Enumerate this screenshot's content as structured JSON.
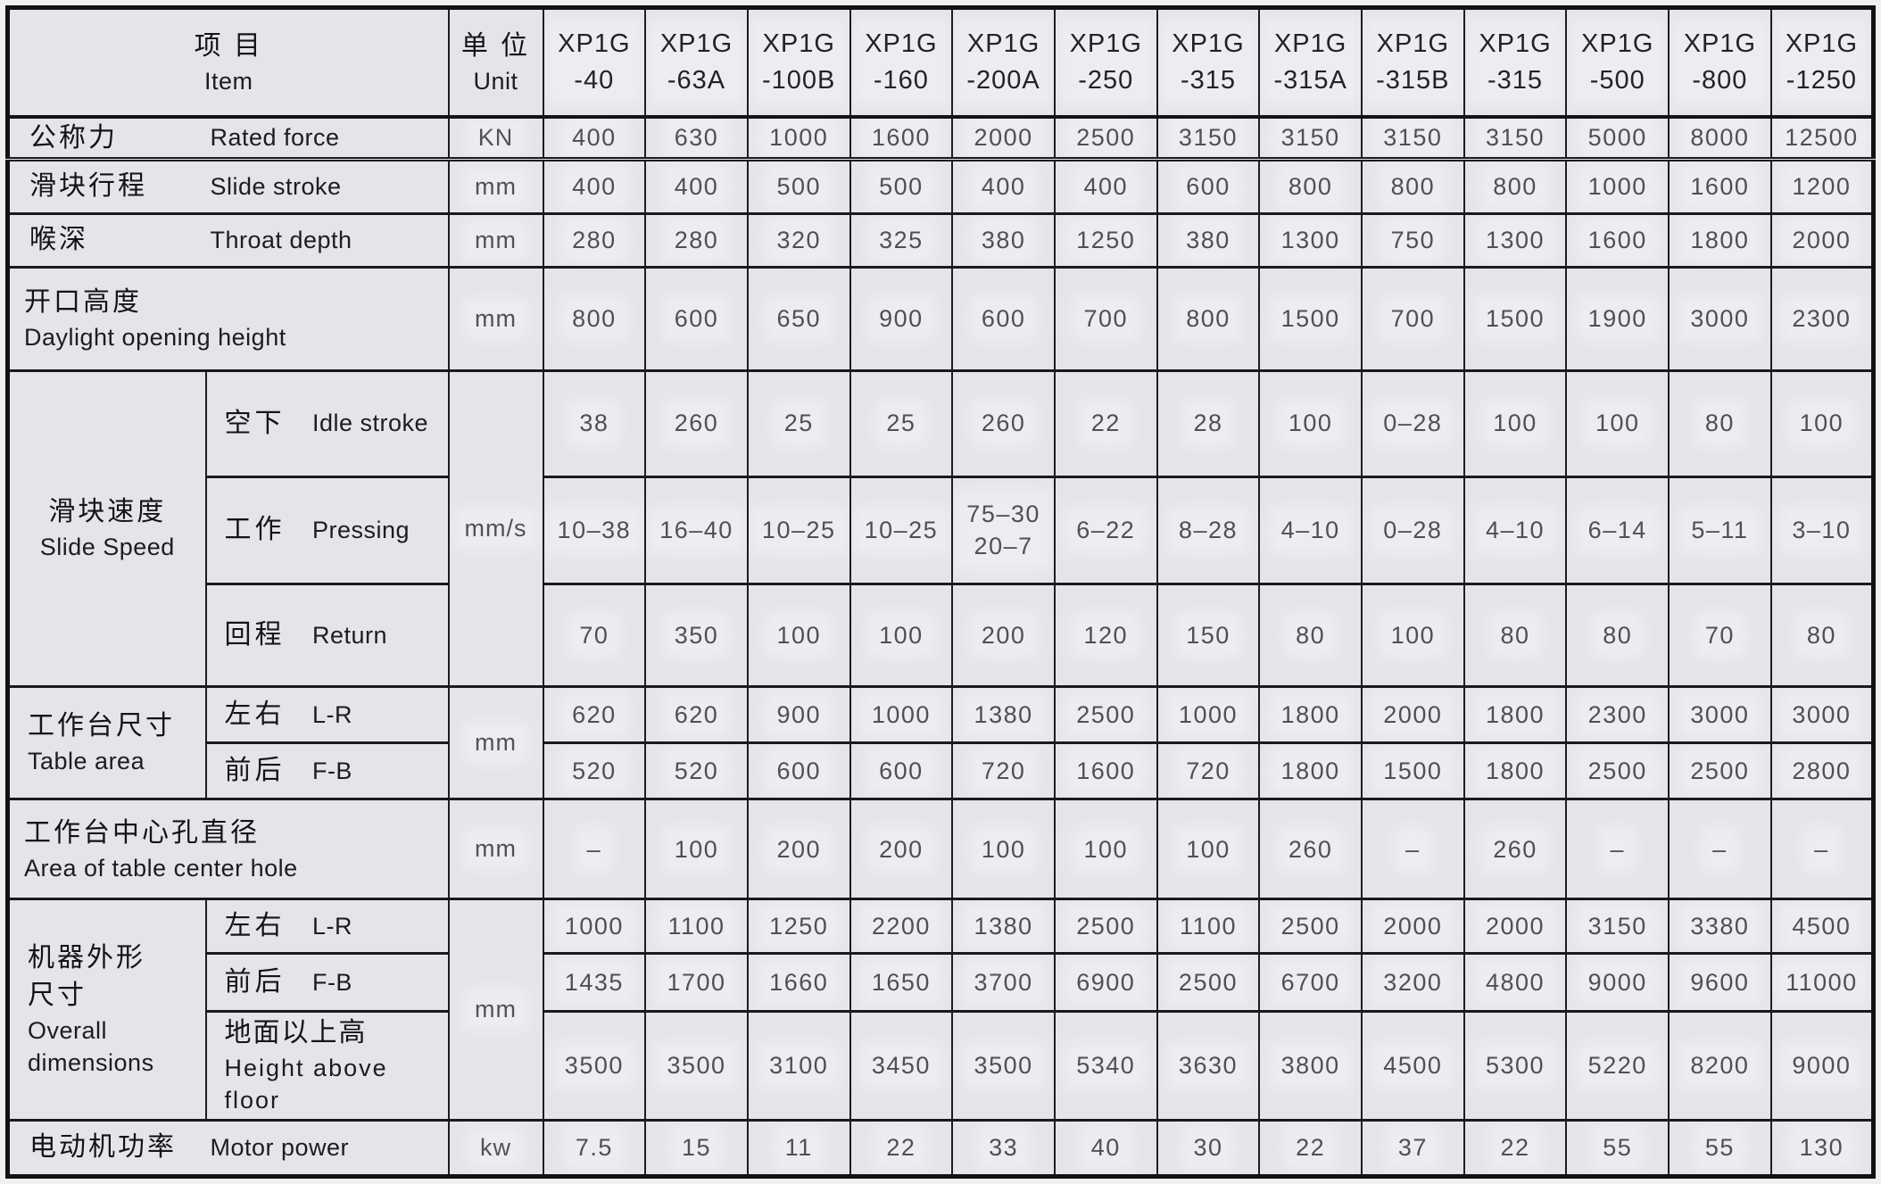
{
  "header": {
    "item_cn": "项 目",
    "item_en": "Item",
    "unit_cn": "单 位",
    "unit_en": "Unit",
    "models": [
      "XP1G\n-40",
      "XP1G\n-63A",
      "XP1G\n-100B",
      "XP1G\n-160",
      "XP1G\n-200A",
      "XP1G\n-250",
      "XP1G\n-315",
      "XP1G\n-315A",
      "XP1G\n-315B",
      "XP1G\n-315",
      "XP1G\n-500",
      "XP1G\n-800",
      "XP1G\n-1250"
    ]
  },
  "colors": {
    "paper": "#e4e5e8",
    "line": "#1a1a1e",
    "ink_label": "#141418",
    "ink_value": "#4f4f56"
  },
  "rows": {
    "rated_force": {
      "cn": "公称力",
      "en": "Rated force",
      "unit": "KN",
      "values": [
        "400",
        "630",
        "1000",
        "1600",
        "2000",
        "2500",
        "3150",
        "3150",
        "3150",
        "3150",
        "5000",
        "8000",
        "12500"
      ]
    },
    "slide_stroke": {
      "cn": "滑块行程",
      "en": "Slide stroke",
      "unit": "mm",
      "values": [
        "400",
        "400",
        "500",
        "500",
        "400",
        "400",
        "600",
        "800",
        "800",
        "800",
        "1000",
        "1600",
        "1200"
      ]
    },
    "throat_depth": {
      "cn": "喉深",
      "en": "Throat depth",
      "unit": "mm",
      "values": [
        "280",
        "280",
        "320",
        "325",
        "380",
        "1250",
        "380",
        "1300",
        "750",
        "1300",
        "1600",
        "1800",
        "2000"
      ]
    },
    "daylight": {
      "cn": "开口高度",
      "en": "Daylight opening height",
      "unit": "mm",
      "values": [
        "800",
        "600",
        "650",
        "900",
        "600",
        "700",
        "800",
        "1500",
        "700",
        "1500",
        "1900",
        "3000",
        "2300"
      ]
    },
    "slide_speed": {
      "cn": "滑块速度",
      "en": "Slide Speed",
      "unit": "mm/s",
      "sub": {
        "idle": {
          "cn": "空下",
          "en": "Idle stroke",
          "values": [
            "38",
            "260",
            "25",
            "25",
            "260",
            "22",
            "28",
            "100",
            "0–28",
            "100",
            "100",
            "80",
            "100"
          ]
        },
        "pressing": {
          "cn": "工作",
          "en": "Pressing",
          "values": [
            "10–38",
            "16–40",
            "10–25",
            "10–25",
            "75–30\n20–7",
            "6–22",
            "8–28",
            "4–10",
            "0–28",
            "4–10",
            "6–14",
            "5–11",
            "3–10"
          ]
        },
        "return": {
          "cn": "回程",
          "en": "Return",
          "values": [
            "70",
            "350",
            "100",
            "100",
            "200",
            "120",
            "150",
            "80",
            "100",
            "80",
            "80",
            "70",
            "80"
          ]
        }
      }
    },
    "table_area": {
      "cn": "工作台尺寸",
      "en": "Table area",
      "unit": "mm",
      "sub": {
        "lr": {
          "cn": "左右",
          "en": "L-R",
          "values": [
            "620",
            "620",
            "900",
            "1000",
            "1380",
            "2500",
            "1000",
            "1800",
            "2000",
            "1800",
            "2300",
            "3000",
            "3000"
          ]
        },
        "fb": {
          "cn": "前后",
          "en": "F-B",
          "values": [
            "520",
            "520",
            "600",
            "600",
            "720",
            "1600",
            "720",
            "1800",
            "1500",
            "1800",
            "2500",
            "2500",
            "2800"
          ]
        }
      }
    },
    "center_hole": {
      "cn": "工作台中心孔直径",
      "en": "Area of table center hole",
      "unit": "mm",
      "values": [
        "–",
        "100",
        "200",
        "200",
        "100",
        "100",
        "100",
        "260",
        "–",
        "260",
        "–",
        "–",
        "–"
      ]
    },
    "overall": {
      "cn": "机器外形\n尺寸",
      "en": "Overall\ndimensions",
      "unit": "mm",
      "sub": {
        "lr": {
          "cn": "左右",
          "en": "L-R",
          "values": [
            "1000",
            "1100",
            "1250",
            "2200",
            "1380",
            "2500",
            "1100",
            "2500",
            "2000",
            "2000",
            "3150",
            "3380",
            "4500"
          ]
        },
        "fb": {
          "cn": "前后",
          "en": "F-B",
          "values": [
            "1435",
            "1700",
            "1660",
            "1650",
            "3700",
            "6900",
            "2500",
            "6700",
            "3200",
            "4800",
            "9000",
            "9600",
            "11000"
          ]
        },
        "height": {
          "cn": "地面以上高",
          "en": "Height above floor",
          "values": [
            "3500",
            "3500",
            "3100",
            "3450",
            "3500",
            "5340",
            "3630",
            "3800",
            "4500",
            "5300",
            "5220",
            "8200",
            "9000"
          ]
        }
      }
    },
    "motor_power": {
      "cn": "电动机功率",
      "en": "Motor power",
      "unit": "kw",
      "values": [
        "7.5",
        "15",
        "11",
        "22",
        "33",
        "40",
        "30",
        "22",
        "37",
        "22",
        "55",
        "55",
        "130"
      ]
    }
  }
}
